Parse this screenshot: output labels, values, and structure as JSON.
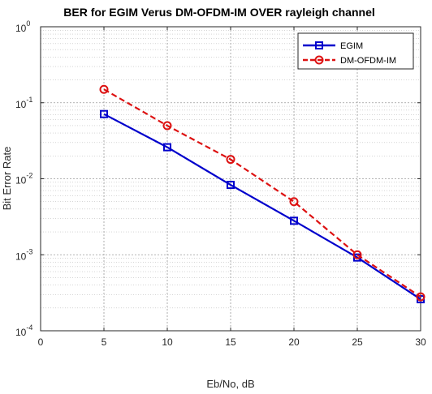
{
  "chart_data": {
    "type": "line",
    "title": "BER for EGIM Verus DM-OFDM-IM  OVER rayleigh channel",
    "xlabel": "Eb/No, dB",
    "ylabel": "Bit Error Rate",
    "xlim": [
      0,
      30
    ],
    "ylim": [
      0.0001,
      1
    ],
    "yscale": "log",
    "grid": true,
    "legend_position": "top-right",
    "x_ticks": [
      "0",
      "5",
      "10",
      "15",
      "20",
      "25",
      "30"
    ],
    "y_ticks": [
      {
        "base": "10",
        "exp": "0"
      },
      {
        "base": "10",
        "exp": "-1"
      },
      {
        "base": "10",
        "exp": "-2"
      },
      {
        "base": "10",
        "exp": "-3"
      },
      {
        "base": "10",
        "exp": "-4"
      }
    ],
    "series": [
      {
        "name": "EGIM",
        "color": "#0000cc",
        "marker": "square",
        "line_style": "solid",
        "x": [
          5,
          10,
          15,
          20,
          25,
          30
        ],
        "y": [
          0.071,
          0.026,
          0.0083,
          0.0028,
          0.00092,
          0.00026
        ]
      },
      {
        "name": "DM-OFDM-IM",
        "color": "#dd1111",
        "marker": "circle",
        "line_style": "dashed",
        "x": [
          5,
          10,
          15,
          20,
          25,
          30
        ],
        "y": [
          0.15,
          0.05,
          0.018,
          0.005,
          0.001,
          0.00028
        ]
      }
    ]
  }
}
